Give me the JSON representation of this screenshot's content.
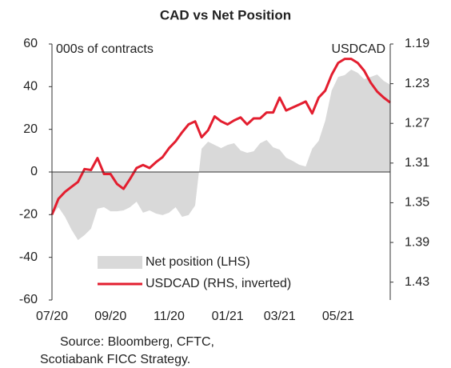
{
  "chart_data": {
    "type": "area-line",
    "title": "CAD vs Net Position",
    "annotations": [
      "000s of contracts",
      "USDCAD"
    ],
    "source": [
      "Source: Bloomberg, CFTC,",
      "Scotiabank FICC  Strategy."
    ],
    "categories": [
      "07/20",
      null,
      null,
      null,
      null,
      null,
      null,
      null,
      null,
      "09/20",
      null,
      null,
      null,
      null,
      null,
      null,
      null,
      null,
      "11/20",
      null,
      null,
      null,
      null,
      null,
      null,
      null,
      null,
      "01/21",
      null,
      null,
      null,
      null,
      null,
      null,
      null,
      "03/21",
      null,
      null,
      null,
      null,
      null,
      null,
      null,
      null,
      "05/21",
      null,
      null,
      null,
      null,
      null,
      null,
      null,
      null
    ],
    "series": [
      {
        "name": "Net position (LHS)",
        "color": "#d9d9d9",
        "kind": "area",
        "axis": "y",
        "values": [
          -20.2,
          -16.5,
          -21,
          -27,
          -31.9,
          -29.6,
          -26.6,
          -17.2,
          -16.5,
          -18.4,
          -18.4,
          -18,
          -16.5,
          -13.9,
          -19.1,
          -18,
          -19.5,
          -20.2,
          -19.1,
          -16.5,
          -21,
          -20.2,
          -15.7,
          10.9,
          14.2,
          12.7,
          11.2,
          12.7,
          13.5,
          10.1,
          9,
          9.7,
          13.5,
          15,
          11.6,
          10.5,
          6.7,
          5.2,
          3.4,
          2.6,
          10.9,
          14.6,
          24,
          38.2,
          44.6,
          45.4,
          48,
          46.5,
          43.5,
          44.6,
          45.7,
          42.7,
          40.9
        ]
      },
      {
        "name": "USDCAD (RHS, inverted)",
        "color": "#e31e2f",
        "kind": "line",
        "axis": "y2",
        "values": [
          1.362,
          1.346,
          1.339,
          1.334,
          1.329,
          1.316,
          1.317,
          1.305,
          1.321,
          1.321,
          1.331,
          1.336,
          1.326,
          1.315,
          1.312,
          1.315,
          1.309,
          1.304,
          1.295,
          1.288,
          1.279,
          1.271,
          1.268,
          1.284,
          1.277,
          1.263,
          1.268,
          1.271,
          1.267,
          1.264,
          1.271,
          1.265,
          1.265,
          1.259,
          1.259,
          1.244,
          1.257,
          1.254,
          1.251,
          1.248,
          1.26,
          1.244,
          1.237,
          1.221,
          1.209,
          1.205,
          1.205,
          1.209,
          1.217,
          1.229,
          1.238,
          1.244,
          1.249
        ]
      }
    ],
    "ylim": [
      -60,
      60
    ],
    "yticks": [
      -60,
      -40,
      -20,
      0,
      20,
      40,
      60
    ],
    "y2lim": [
      1.19,
      1.448
    ],
    "y2ticks": [
      1.19,
      1.23,
      1.27,
      1.31,
      1.35,
      1.39,
      1.43
    ],
    "y2_inverted": true,
    "grid": false,
    "legend": "lower right"
  }
}
